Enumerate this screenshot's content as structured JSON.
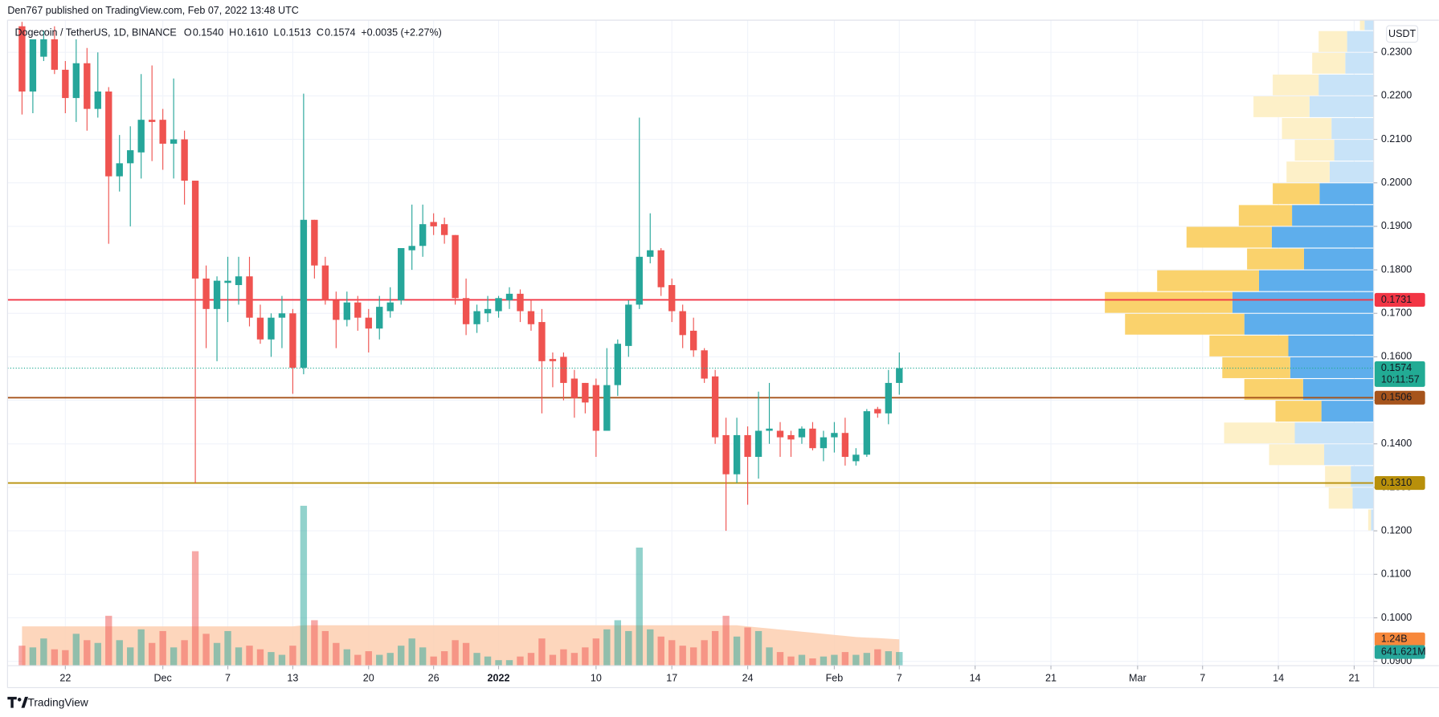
{
  "header": {
    "byline": "Den767 published on TradingView.com, Feb 07, 2022 13:48 UTC",
    "symbol": "Dogecoin / TetherUS, 1D, BINANCE",
    "fields": [
      {
        "key": "O",
        "value": "0.1540"
      },
      {
        "key": "H",
        "value": "0.1610"
      },
      {
        "key": "L",
        "value": "0.1513"
      },
      {
        "key": "C",
        "value": "0.1574"
      }
    ],
    "change": "+0.0035 (+2.27%)",
    "currency": "USDT"
  },
  "footer": {
    "brand": "TradingView"
  },
  "chart_data": {
    "type": "candlestick",
    "colors": {
      "up": "#26a69a",
      "down": "#ef5350",
      "up_volume": "rgba(38,166,154,0.5)",
      "down_volume": "rgba(239,83,80,0.5)"
    },
    "xlim": [
      -1.34,
      124.8
    ],
    "xticks": [
      {
        "value": 4,
        "label": "22"
      },
      {
        "value": 13,
        "label": "Dec"
      },
      {
        "value": 19,
        "label": "7"
      },
      {
        "value": 25,
        "label": "13"
      },
      {
        "value": 32,
        "label": "20"
      },
      {
        "value": 38,
        "label": "26"
      },
      {
        "value": 44,
        "label": "2022",
        "bold": true
      },
      {
        "value": 53,
        "label": "10"
      },
      {
        "value": 60,
        "label": "17"
      },
      {
        "value": 67,
        "label": "24"
      },
      {
        "value": 75,
        "label": "Feb"
      },
      {
        "value": 81,
        "label": "7"
      },
      {
        "value": 88,
        "label": "14"
      },
      {
        "value": 95,
        "label": "21"
      },
      {
        "value": 103,
        "label": "Mar"
      },
      {
        "value": 109,
        "label": "7"
      },
      {
        "value": 116,
        "label": "14"
      },
      {
        "value": 123,
        "label": "21"
      }
    ],
    "ylim": [
      0.089,
      0.2374
    ],
    "yticks": [
      {
        "value": 0.09,
        "label": "0.0900"
      },
      {
        "value": 0.1,
        "label": "0.1000"
      },
      {
        "value": 0.11,
        "label": "0.1100"
      },
      {
        "value": 0.12,
        "label": "0.1200"
      },
      {
        "value": 0.13,
        "label": "0.1300"
      },
      {
        "value": 0.14,
        "label": "0.1400"
      },
      {
        "value": 0.15,
        "label": "0.1500"
      },
      {
        "value": 0.16,
        "label": "0.1600"
      },
      {
        "value": 0.17,
        "label": "0.1700"
      },
      {
        "value": 0.18,
        "label": "0.1800"
      },
      {
        "value": 0.19,
        "label": "0.1900"
      },
      {
        "value": 0.2,
        "label": "0.2000"
      },
      {
        "value": 0.21,
        "label": "0.2100"
      },
      {
        "value": 0.22,
        "label": "0.2200"
      },
      {
        "value": 0.23,
        "label": "0.2300"
      }
    ],
    "grid": true,
    "x": [
      0,
      1,
      2,
      3,
      4,
      5,
      6,
      7,
      8,
      9,
      10,
      11,
      12,
      13,
      14,
      15,
      16,
      17,
      18,
      19,
      20,
      21,
      22,
      23,
      24,
      25,
      26,
      27,
      28,
      29,
      30,
      31,
      32,
      33,
      34,
      35,
      36,
      37,
      38,
      39,
      40,
      41,
      42,
      43,
      44,
      45,
      46,
      47,
      48,
      49,
      50,
      51,
      52,
      53,
      54,
      55,
      56,
      57,
      58,
      59,
      60,
      61,
      62,
      63,
      64,
      65,
      66,
      67,
      68,
      69,
      70,
      71,
      72,
      73,
      74,
      75,
      76,
      77,
      78,
      79,
      80,
      81
    ],
    "open": [
      0.236,
      0.221,
      0.229,
      0.233,
      0.226,
      0.2195,
      0.2275,
      0.217,
      0.221,
      0.2015,
      0.2045,
      0.207,
      0.2145,
      0.2145,
      0.209,
      0.21,
      0.2005,
      0.178,
      0.171,
      0.177,
      0.1765,
      0.1785,
      0.169,
      0.164,
      0.169,
      0.17,
      0.1575,
      0.1915,
      0.181,
      0.173,
      0.1685,
      0.1725,
      0.169,
      0.1665,
      0.1705,
      0.173,
      0.1845,
      0.1855,
      0.191,
      0.1905,
      0.188,
      0.1735,
      0.1675,
      0.17,
      0.1705,
      0.173,
      0.1745,
      0.1705,
      0.168,
      0.1595,
      0.16,
      0.155,
      0.154,
      0.1535,
      0.143,
      0.1535,
      0.1625,
      0.172,
      0.183,
      0.1845,
      0.1765,
      0.1705,
      0.166,
      0.1615,
      0.1555,
      0.142,
      0.133,
      0.142,
      0.137,
      0.143,
      0.143,
      0.142,
      0.1415,
      0.1435,
      0.139,
      0.1415,
      0.1425,
      0.136,
      0.1375,
      0.148,
      0.147,
      0.154
    ],
    "high": [
      0.237,
      0.233,
      0.235,
      0.236,
      0.228,
      0.233,
      0.231,
      0.23,
      0.222,
      0.211,
      0.213,
      0.225,
      0.227,
      0.217,
      0.224,
      0.212,
      0.2005,
      0.181,
      0.1785,
      0.183,
      0.183,
      0.183,
      0.172,
      0.17,
      0.174,
      0.171,
      0.2205,
      0.1915,
      0.183,
      0.175,
      0.175,
      0.174,
      0.171,
      0.174,
      0.176,
      0.185,
      0.195,
      0.195,
      0.193,
      0.192,
      0.188,
      0.178,
      0.172,
      0.174,
      0.174,
      0.176,
      0.1755,
      0.173,
      0.171,
      0.161,
      0.161,
      0.157,
      0.154,
      0.155,
      0.162,
      0.164,
      0.173,
      0.215,
      0.193,
      0.185,
      0.178,
      0.172,
      0.169,
      0.162,
      0.157,
      0.146,
      0.146,
      0.144,
      0.152,
      0.154,
      0.145,
      0.143,
      0.144,
      0.145,
      0.143,
      0.145,
      0.146,
      0.139,
      0.148,
      0.1485,
      0.157,
      0.161
    ],
    "low": [
      0.2157,
      0.216,
      0.228,
      0.225,
      0.216,
      0.214,
      0.212,
      0.215,
      0.186,
      0.198,
      0.19,
      0.201,
      0.205,
      0.203,
      0.201,
      0.195,
      0.131,
      0.162,
      0.159,
      0.168,
      0.172,
      0.167,
      0.163,
      0.16,
      0.162,
      0.1515,
      0.156,
      0.178,
      0.172,
      0.162,
      0.167,
      0.166,
      0.161,
      0.164,
      0.169,
      0.172,
      0.18,
      0.183,
      0.188,
      0.186,
      0.172,
      0.165,
      0.1655,
      0.168,
      0.169,
      0.171,
      0.168,
      0.166,
      0.147,
      0.153,
      0.15,
      0.146,
      0.147,
      0.137,
      0.143,
      0.151,
      0.16,
      0.171,
      0.1815,
      0.174,
      0.168,
      0.162,
      0.16,
      0.154,
      0.14,
      0.12,
      0.131,
      0.126,
      0.132,
      0.14,
      0.137,
      0.137,
      0.14,
      0.1385,
      0.136,
      0.138,
      0.135,
      0.135,
      0.137,
      0.146,
      0.1445,
      0.1513
    ],
    "close": [
      0.221,
      0.233,
      0.233,
      0.226,
      0.2195,
      0.2275,
      0.217,
      0.221,
      0.2015,
      0.2045,
      0.2075,
      0.2145,
      0.214,
      0.209,
      0.21,
      0.2005,
      0.178,
      0.171,
      0.1775,
      0.1775,
      0.1785,
      0.169,
      0.164,
      0.169,
      0.17,
      0.1575,
      0.1915,
      0.181,
      0.173,
      0.1685,
      0.1725,
      0.169,
      0.1665,
      0.1715,
      0.1725,
      0.185,
      0.1855,
      0.1905,
      0.19,
      0.188,
      0.1735,
      0.1675,
      0.1705,
      0.171,
      0.1735,
      0.1745,
      0.1705,
      0.1675,
      0.159,
      0.159,
      0.154,
      0.1505,
      0.1495,
      0.143,
      0.1535,
      0.163,
      0.172,
      0.183,
      0.1845,
      0.176,
      0.1705,
      0.165,
      0.1615,
      0.155,
      0.1415,
      0.133,
      0.142,
      0.137,
      0.143,
      0.1435,
      0.1415,
      0.141,
      0.1435,
      0.139,
      0.1415,
      0.1425,
      0.137,
      0.1375,
      0.1475,
      0.147,
      0.154,
      0.1574
    ],
    "volume": {
      "vlim": [
        0,
        7600000000.0
      ],
      "last_label": "641.621M",
      "values": [
        940000000.0,
        860000000.0,
        1280000000.0,
        770000000.0,
        730000000.0,
        1500000000.0,
        1200000000.0,
        1070000000.0,
        2350000000.0,
        1200000000.0,
        860000000.0,
        1710000000.0,
        1070000000.0,
        1630000000.0,
        860000000.0,
        1200000000.0,
        5390000000.0,
        1500000000.0,
        1070000000.0,
        1630000000.0,
        860000000.0,
        940000000.0,
        770000000.0,
        640000000.0,
        510000000.0,
        940000000.0,
        7530000000.0,
        2140000000.0,
        1630000000.0,
        1070000000.0,
        770000000.0,
        510000000.0,
        680000000.0,
        510000000.0,
        600000000.0,
        940000000.0,
        1280000000.0,
        860000000.0,
        430000000.0,
        680000000.0,
        1200000000.0,
        1070000000.0,
        600000000.0,
        430000000.0,
        260000000.0,
        260000000.0,
        430000000.0,
        600000000.0,
        1280000000.0,
        510000000.0,
        770000000.0,
        600000000.0,
        860000000.0,
        1280000000.0,
        1710000000.0,
        2140000000.0,
        1630000000.0,
        5560000000.0,
        1710000000.0,
        1370000000.0,
        1200000000.0,
        940000000.0,
        860000000.0,
        1200000000.0,
        1630000000.0,
        2350000000.0,
        1370000000.0,
        1800000000.0,
        1630000000.0,
        860000000.0,
        640000000.0,
        430000000.0,
        510000000.0,
        340000000.0,
        430000000.0,
        510000000.0,
        640000000.0,
        510000000.0,
        600000000.0,
        770000000.0,
        680000000.0,
        641621000
      ]
    },
    "volume_ma": {
      "color": "#fdcfb0",
      "last_label": "1.24B",
      "values": [
        1850000000.0,
        1850000000.0,
        1850000000.0,
        1850000000.0,
        1850000000.0,
        1850000000.0,
        1850000000.0,
        1850000000.0,
        1850000000.0,
        1850000000.0,
        1850000000.0,
        1850000000.0,
        1850000000.0,
        1850000000.0,
        1850000000.0,
        1850000000.0,
        1850000000.0,
        1850000000.0,
        1850000000.0,
        1850000000.0,
        1850000000.0,
        1850000000.0,
        1850000000.0,
        1850000000.0,
        1850000000.0,
        1850000000.0,
        1900000000.0,
        1900000000.0,
        1900000000.0,
        1900000000.0,
        1900000000.0,
        1900000000.0,
        1900000000.0,
        1900000000.0,
        1900000000.0,
        1900000000.0,
        1900000000.0,
        1900000000.0,
        1900000000.0,
        1900000000.0,
        1900000000.0,
        1900000000.0,
        1900000000.0,
        1900000000.0,
        1900000000.0,
        1900000000.0,
        1900000000.0,
        1900000000.0,
        1900000000.0,
        1900000000.0,
        1900000000.0,
        1900000000.0,
        1900000000.0,
        1900000000.0,
        1900000000.0,
        1900000000.0,
        1900000000.0,
        1900000000.0,
        1900000000.0,
        1900000000.0,
        1900000000.0,
        1900000000.0,
        1900000000.0,
        1900000000.0,
        1900000000.0,
        1900000000.0,
        1900000000.0,
        1850000000.0,
        1800000000.0,
        1750000000.0,
        1700000000.0,
        1650000000.0,
        1600000000.0,
        1550000000.0,
        1500000000.0,
        1450000000.0,
        1400000000.0,
        1350000000.0,
        1320000000.0,
        1300000000.0,
        1270000000.0,
        1240000000.0
      ]
    },
    "levels": [
      {
        "value": 0.1731,
        "label": "0.1731",
        "color": "#f23645"
      },
      {
        "value": 0.1506,
        "label": "0.1506",
        "color": "#a6541c"
      },
      {
        "value": 0.131,
        "label": "0.1310",
        "color": "#b8900b"
      }
    ],
    "last": {
      "value": 0.1574,
      "label": "0.1574",
      "countdown": "10:11:57",
      "color": "#22ab94"
    },
    "profile": {
      "value_area": [
        0.145,
        0.2
      ],
      "colors": {
        "up": "#fad26c",
        "down": "#5eaeec",
        "up_light": "#fdf0c8",
        "down_light": "#c8e3f8"
      },
      "rows": [
        {
          "low": 0.12,
          "high": 0.125,
          "up": 3,
          "down": 3
        },
        {
          "low": 0.125,
          "high": 0.13,
          "up": 26,
          "down": 23
        },
        {
          "low": 0.13,
          "high": 0.135,
          "up": 28,
          "down": 25
        },
        {
          "low": 0.135,
          "high": 0.14,
          "up": 60,
          "down": 54
        },
        {
          "low": 0.14,
          "high": 0.145,
          "up": 77,
          "down": 86
        },
        {
          "low": 0.145,
          "high": 0.15,
          "up": 50,
          "down": 57
        },
        {
          "low": 0.15,
          "high": 0.155,
          "up": 64,
          "down": 77
        },
        {
          "low": 0.155,
          "high": 0.16,
          "up": 74,
          "down": 91
        },
        {
          "low": 0.16,
          "high": 0.165,
          "up": 86,
          "down": 93
        },
        {
          "low": 0.165,
          "high": 0.17,
          "up": 130,
          "down": 141
        },
        {
          "low": 0.17,
          "high": 0.175,
          "up": 139,
          "down": 154
        },
        {
          "low": 0.175,
          "high": 0.18,
          "up": 111,
          "down": 125
        },
        {
          "low": 0.18,
          "high": 0.185,
          "up": 62,
          "down": 76
        },
        {
          "low": 0.185,
          "high": 0.19,
          "up": 93,
          "down": 111
        },
        {
          "low": 0.19,
          "high": 0.195,
          "up": 58,
          "down": 89
        },
        {
          "low": 0.195,
          "high": 0.2,
          "up": 51,
          "down": 59
        },
        {
          "low": 0.2,
          "high": 0.205,
          "up": 47,
          "down": 48
        },
        {
          "low": 0.205,
          "high": 0.21,
          "up": 43,
          "down": 43
        },
        {
          "low": 0.21,
          "high": 0.215,
          "up": 54,
          "down": 46
        },
        {
          "low": 0.215,
          "high": 0.22,
          "up": 61,
          "down": 70
        },
        {
          "low": 0.22,
          "high": 0.225,
          "up": 50,
          "down": 60
        },
        {
          "low": 0.225,
          "high": 0.23,
          "up": 36,
          "down": 31
        },
        {
          "low": 0.23,
          "high": 0.235,
          "up": 31,
          "down": 29
        },
        {
          "low": 0.235,
          "high": 0.24,
          "up": 5,
          "down": 10
        }
      ]
    }
  }
}
